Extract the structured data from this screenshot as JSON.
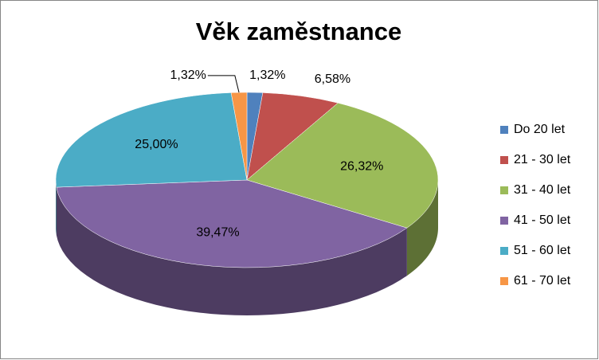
{
  "chart_data": {
    "type": "pie",
    "title": "Věk zaměstnance",
    "categories": [
      "Do 20 let",
      "21 - 30 let",
      "31 - 40 let",
      "41 - 50 let",
      "51 - 60 let",
      "61 - 70 let"
    ],
    "values": [
      1.32,
      6.58,
      26.32,
      39.47,
      25.0,
      1.32
    ],
    "value_labels": [
      "1,32%",
      "6,58%",
      "26,32%",
      "39,47%",
      "25,00%",
      "1,32%"
    ],
    "colors": [
      "#4f81bd",
      "#c0504d",
      "#9bbb59",
      "#8064a2",
      "#4bacc6",
      "#f79646"
    ],
    "legend": "right"
  }
}
